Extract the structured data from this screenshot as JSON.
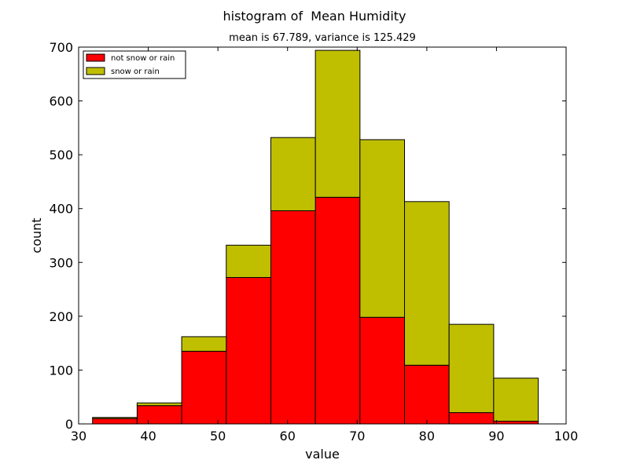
{
  "chart_data": {
    "type": "bar",
    "stacked": true,
    "title": "histogram of  Mean Humidity",
    "subtitle": "mean is 67.789, variance is 125.429",
    "xlabel": "value",
    "ylabel": "count",
    "xlim": [
      30,
      100
    ],
    "ylim": [
      0,
      700
    ],
    "xticks": [
      30,
      40,
      50,
      60,
      70,
      80,
      90,
      100
    ],
    "yticks": [
      0,
      100,
      200,
      300,
      400,
      500,
      600,
      700
    ],
    "bin_edges": [
      32,
      38.4,
      44.8,
      51.2,
      57.6,
      64,
      70.4,
      76.8,
      83.2,
      89.6,
      96
    ],
    "series": [
      {
        "name": "not snow or rain",
        "color": "#ff0000",
        "values": [
          10,
          34,
          135,
          272,
          396,
          421,
          198,
          109,
          21,
          5
        ]
      },
      {
        "name": "snow or rain",
        "color": "#bfbf00",
        "values": [
          2,
          5,
          27,
          60,
          136,
          273,
          330,
          304,
          164,
          80
        ]
      }
    ],
    "legend_position": "top-left",
    "grid": false
  }
}
